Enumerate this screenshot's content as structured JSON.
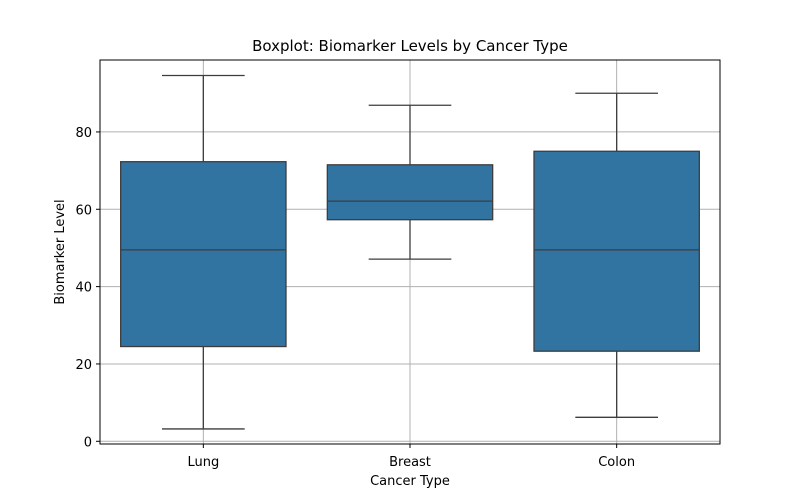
{
  "chart_data": {
    "type": "box",
    "title": "Boxplot: Biomarker Levels by Cancer Type",
    "xlabel": "Cancer Type",
    "ylabel": "Biomarker Level",
    "categories": [
      "Lung",
      "Breast",
      "Colon"
    ],
    "boxes": [
      {
        "category": "Lung",
        "whisker_low": 3.2,
        "q1": 24.5,
        "median": 49.5,
        "q3": 72.3,
        "whisker_high": 94.6
      },
      {
        "category": "Breast",
        "whisker_low": 47.1,
        "q1": 57.3,
        "median": 62.1,
        "q3": 71.5,
        "whisker_high": 86.9
      },
      {
        "category": "Colon",
        "whisker_low": 6.2,
        "q1": 23.3,
        "median": 49.5,
        "q3": 75.0,
        "whisker_high": 90.0
      }
    ],
    "ylim": [
      -0.7,
      98.6
    ],
    "yticks": [
      0,
      20,
      40,
      60,
      80
    ],
    "grid": true,
    "box_color": "#3274a1",
    "line_color": "#3d3d3d"
  }
}
